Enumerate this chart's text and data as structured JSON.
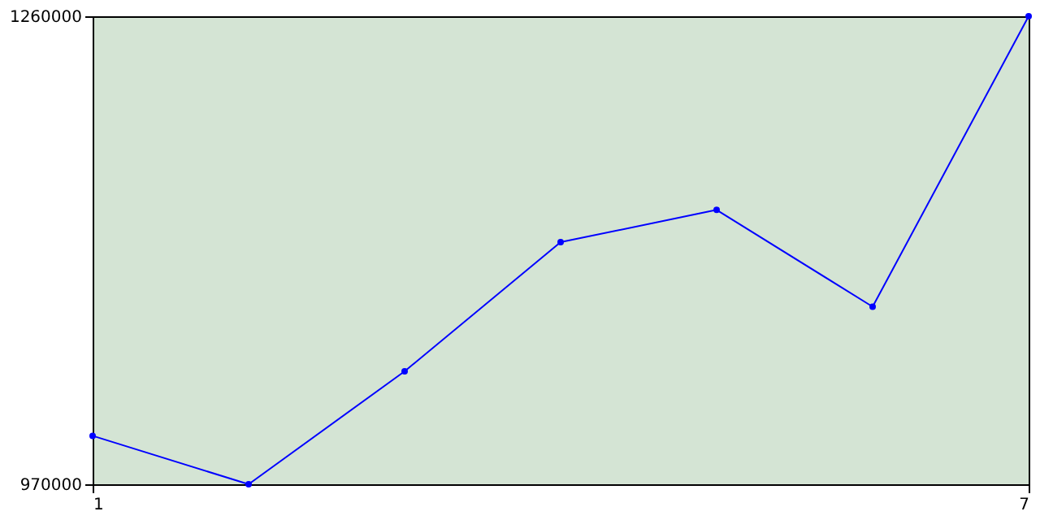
{
  "chart_data": {
    "type": "line",
    "x": [
      1,
      2,
      3,
      4,
      5,
      6,
      7
    ],
    "series": [
      {
        "color": "#0000ff",
        "values": [
          1000000,
          970000,
          1040000,
          1120000,
          1140000,
          1080000,
          1260000
        ]
      }
    ],
    "xlim": [
      1,
      7
    ],
    "xticks": [
      1,
      7
    ],
    "ylim": [
      970000,
      1260000
    ],
    "yticks": [
      970000,
      1260000
    ],
    "legend": false,
    "marker": "circle",
    "line_style": "solid"
  }
}
